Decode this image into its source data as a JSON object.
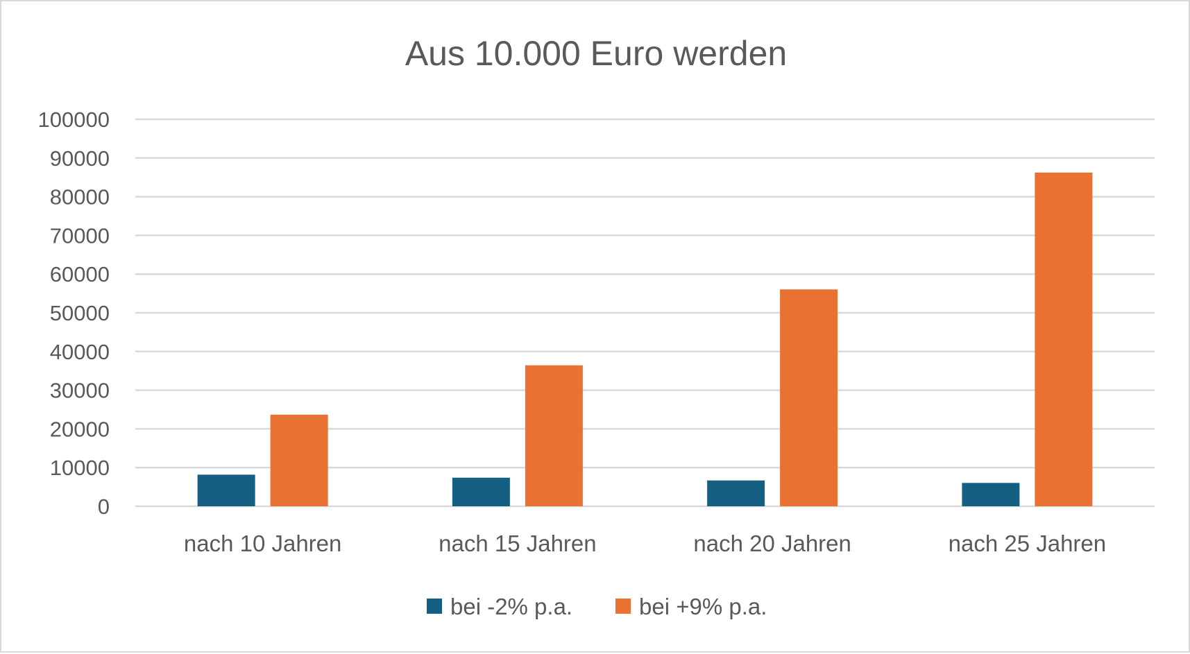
{
  "chart_data": {
    "type": "bar",
    "title": "Aus 10.000 Euro werden",
    "xlabel": "",
    "ylabel": "",
    "categories": [
      "nach 10 Jahren",
      "nach 15 Jahren",
      "nach 20 Jahren",
      "nach 25 Jahren"
    ],
    "series": [
      {
        "name": "bei -2% p.a.",
        "color": "#156082",
        "values": [
          8171,
          7386,
          6676,
          6035
        ]
      },
      {
        "name": "bei +9% p.a.",
        "color": "#E97132",
        "values": [
          23674,
          36425,
          56044,
          86231
        ]
      }
    ],
    "ylim": [
      0,
      100000
    ],
    "yticks": [
      "0",
      "10000",
      "20000",
      "30000",
      "40000",
      "50000",
      "60000",
      "70000",
      "80000",
      "90000",
      "100000"
    ],
    "grid": true,
    "legend_position": "bottom"
  }
}
